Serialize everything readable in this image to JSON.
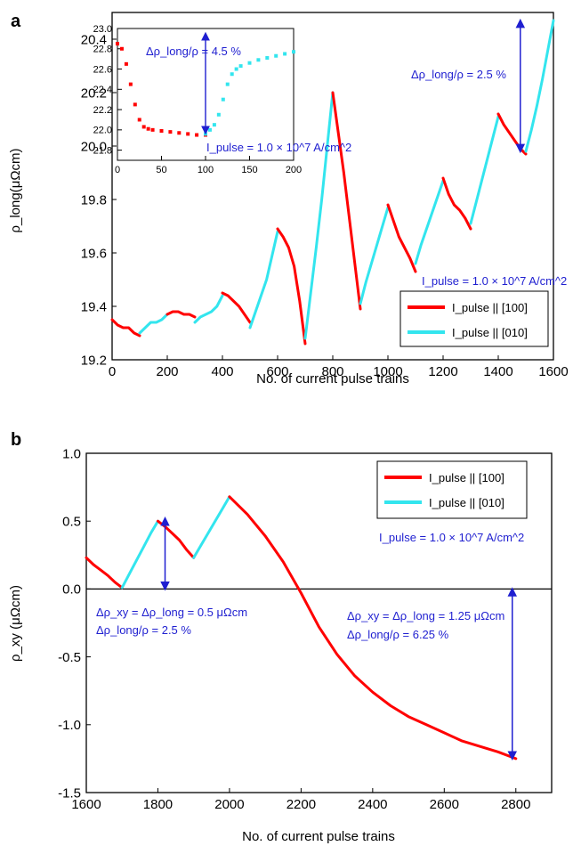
{
  "chart_data": [
    {
      "panel_label": "a",
      "type": "line",
      "xlabel": "No. of current pulse trains",
      "ylabel": "ρ_long(μΩcm)",
      "xlim": [
        0,
        1600
      ],
      "ylim": [
        19.2,
        20.5
      ],
      "xticks": [
        "0",
        "200",
        "400",
        "600",
        "800",
        "1000",
        "1200",
        "1400",
        "1600"
      ],
      "yticks": [
        "19.2",
        "19.4",
        "19.6",
        "19.8",
        "20.0",
        "20.2",
        "20.4"
      ],
      "legend": {
        "placement": "bottom-right",
        "entries": [
          {
            "label": "I_pulse || [100]",
            "color": "#ff0000"
          },
          {
            "label": "I_pulse || [010]",
            "color": "#33e5ee"
          }
        ]
      },
      "annotations": [
        {
          "text": "Δρ_long/ρ = 2.5 %"
        },
        {
          "text": "I_pulse = 1.0 × 10^7 A/cm^2"
        }
      ],
      "series": [
        {
          "color": "#ff0000",
          "x": [
            0,
            20,
            40,
            60,
            80,
            100
          ],
          "y": [
            19.35,
            19.33,
            19.32,
            19.32,
            19.3,
            19.29
          ]
        },
        {
          "color": "#33e5ee",
          "x": [
            100,
            120,
            140,
            160,
            180,
            200
          ],
          "y": [
            19.3,
            19.32,
            19.34,
            19.34,
            19.35,
            19.37
          ]
        },
        {
          "color": "#ff0000",
          "x": [
            200,
            220,
            240,
            260,
            280,
            300
          ],
          "y": [
            19.37,
            19.38,
            19.38,
            19.37,
            19.37,
            19.36
          ]
        },
        {
          "color": "#33e5ee",
          "x": [
            300,
            320,
            340,
            360,
            380,
            400
          ],
          "y": [
            19.34,
            19.36,
            19.37,
            19.38,
            19.4,
            19.44
          ]
        },
        {
          "color": "#ff0000",
          "x": [
            400,
            420,
            440,
            460,
            480,
            500
          ],
          "y": [
            19.45,
            19.44,
            19.42,
            19.4,
            19.37,
            19.34
          ]
        },
        {
          "color": "#33e5ee",
          "x": [
            500,
            520,
            540,
            560,
            580,
            600
          ],
          "y": [
            19.32,
            19.38,
            19.44,
            19.5,
            19.59,
            19.68
          ]
        },
        {
          "color": "#ff0000",
          "x": [
            600,
            620,
            640,
            660,
            680,
            700
          ],
          "y": [
            19.69,
            19.66,
            19.62,
            19.55,
            19.42,
            19.26
          ]
        },
        {
          "color": "#33e5ee",
          "x": [
            700,
            720,
            740,
            760,
            780,
            800
          ],
          "y": [
            19.28,
            19.45,
            19.62,
            19.8,
            20.0,
            20.2
          ]
        },
        {
          "color": "#ff0000",
          "x": [
            800,
            820,
            840,
            860,
            880,
            900
          ],
          "y": [
            20.2,
            20.05,
            19.9,
            19.73,
            19.56,
            19.39
          ]
        },
        {
          "color": "#33e5ee",
          "x": [
            900,
            920,
            940,
            960,
            980,
            1000
          ],
          "y": [
            19.41,
            19.49,
            19.56,
            19.63,
            19.7,
            19.77
          ]
        },
        {
          "color": "#ff0000",
          "x": [
            1000,
            1020,
            1040,
            1060,
            1080,
            1100
          ],
          "y": [
            19.78,
            19.72,
            19.66,
            19.62,
            19.58,
            19.53
          ]
        },
        {
          "color": "#33e5ee",
          "x": [
            1100,
            1120,
            1140,
            1160,
            1180,
            1200
          ],
          "y": [
            19.56,
            19.63,
            19.69,
            19.75,
            19.81,
            19.87
          ]
        },
        {
          "color": "#ff0000",
          "x": [
            1200,
            1220,
            1240,
            1260,
            1280,
            1300
          ],
          "y": [
            19.88,
            19.82,
            19.78,
            19.76,
            19.73,
            19.69
          ]
        },
        {
          "color": "#33e5ee",
          "x": [
            1300,
            1320,
            1340,
            1360,
            1380,
            1400
          ],
          "y": [
            19.71,
            19.79,
            19.87,
            19.95,
            20.03,
            20.11
          ]
        },
        {
          "color": "#ff0000",
          "x": [
            1400,
            1420,
            1440,
            1460,
            1480,
            1500
          ],
          "y": [
            20.12,
            20.08,
            20.05,
            20.02,
            19.99,
            19.97
          ]
        },
        {
          "color": "#33e5ee",
          "x": [
            1500,
            1520,
            1540,
            1560,
            1580,
            1600
          ],
          "y": [
            19.98,
            20.06,
            20.15,
            20.25,
            20.36,
            20.47
          ]
        }
      ],
      "arrow": {
        "x": 1480,
        "y_from": 20.47,
        "y_to": 19.98
      }
    },
    {
      "panel_label": "",
      "type": "line",
      "inset": true,
      "xlim": [
        0,
        200
      ],
      "ylim": [
        21.7,
        23.0
      ],
      "xticks": [
        "0",
        "50",
        "100",
        "150",
        "200"
      ],
      "yticks": [
        "21.8",
        "22.0",
        "22.2",
        "22.4",
        "22.6",
        "22.8",
        "23.0"
      ],
      "annotations": [
        {
          "text": "Δρ_long/ρ = 4.5 %"
        },
        {
          "text": "I_pulse = 1.0 × 10^7 A/cm^2"
        }
      ],
      "series": [
        {
          "color": "#ff0000",
          "style": "dots",
          "x": [
            0,
            5,
            10,
            15,
            20,
            25,
            30,
            35,
            40,
            50,
            60,
            70,
            80,
            90,
            100
          ],
          "y": [
            22.85,
            22.8,
            22.65,
            22.45,
            22.25,
            22.1,
            22.03,
            22.01,
            22.0,
            21.99,
            21.98,
            21.97,
            21.96,
            21.95,
            21.95
          ]
        },
        {
          "color": "#33e5ee",
          "style": "dots",
          "x": [
            100,
            105,
            110,
            115,
            120,
            125,
            130,
            135,
            140,
            150,
            160,
            170,
            180,
            190,
            200
          ],
          "y": [
            21.96,
            22.0,
            22.05,
            22.15,
            22.3,
            22.45,
            22.55,
            22.6,
            22.63,
            22.66,
            22.69,
            22.71,
            22.73,
            22.75,
            22.77
          ]
        }
      ],
      "arrow": {
        "x": 100,
        "y_from": 22.95,
        "y_to": 21.97
      }
    },
    {
      "panel_label": "b",
      "type": "line",
      "xlabel": "No. of current pulse trains",
      "ylabel": "ρ_xy (μΩcm)",
      "xlim": [
        1600,
        2900
      ],
      "ylim": [
        -1.5,
        1.0
      ],
      "xticks": [
        "1600",
        "1800",
        "2000",
        "2200",
        "2400",
        "2600",
        "2800"
      ],
      "yticks": [
        "-1.5",
        "-1.0",
        "-0.5",
        "0.0",
        "0.5",
        "1.0"
      ],
      "legend": {
        "placement": "top-right",
        "entries": [
          {
            "label": "I_pulse || [100]",
            "color": "#ff0000"
          },
          {
            "label": "I_pulse || [010]",
            "color": "#33e5ee"
          }
        ]
      },
      "annotations": [
        {
          "text": "I_pulse = 1.0 × 10^7 A/cm^2"
        },
        {
          "text": "Δρ_xy = Δρ_long = 0.5 μΩcm"
        },
        {
          "text": "Δρ_long/ρ = 2.5 %"
        },
        {
          "text": "Δρ_xy = Δρ_long = 1.25 μΩcm"
        },
        {
          "text": "Δρ_long/ρ = 6.25 %"
        }
      ],
      "series": [
        {
          "color": "#ff0000",
          "x": [
            1600,
            1620,
            1640,
            1660,
            1680,
            1700
          ],
          "y": [
            0.23,
            0.18,
            0.14,
            0.1,
            0.05,
            0.01
          ]
        },
        {
          "color": "#33e5ee",
          "x": [
            1700,
            1720,
            1740,
            1760,
            1780,
            1800
          ],
          "y": [
            0.01,
            0.11,
            0.21,
            0.31,
            0.41,
            0.5
          ]
        },
        {
          "color": "#ff0000",
          "x": [
            1800,
            1820,
            1840,
            1860,
            1880,
            1900
          ],
          "y": [
            0.5,
            0.46,
            0.41,
            0.36,
            0.29,
            0.23
          ]
        },
        {
          "color": "#33e5ee",
          "x": [
            1900,
            1920,
            1940,
            1960,
            1980,
            2000
          ],
          "y": [
            0.23,
            0.32,
            0.41,
            0.5,
            0.59,
            0.68
          ]
        },
        {
          "color": "#ff0000",
          "x": [
            2000,
            2050,
            2100,
            2150,
            2200,
            2250,
            2300,
            2350,
            2400,
            2450,
            2500,
            2550,
            2600,
            2650,
            2700,
            2750,
            2800
          ],
          "y": [
            0.68,
            0.55,
            0.39,
            0.2,
            -0.03,
            -0.28,
            -0.48,
            -0.64,
            -0.76,
            -0.86,
            -0.94,
            -1.0,
            -1.06,
            -1.12,
            -1.16,
            -1.2,
            -1.25
          ]
        }
      ],
      "arrows": [
        {
          "x": 1820,
          "y_from": 0.52,
          "y_to": 0.0
        },
        {
          "x": 2790,
          "y_from": 0.0,
          "y_to": -1.25
        }
      ]
    }
  ]
}
